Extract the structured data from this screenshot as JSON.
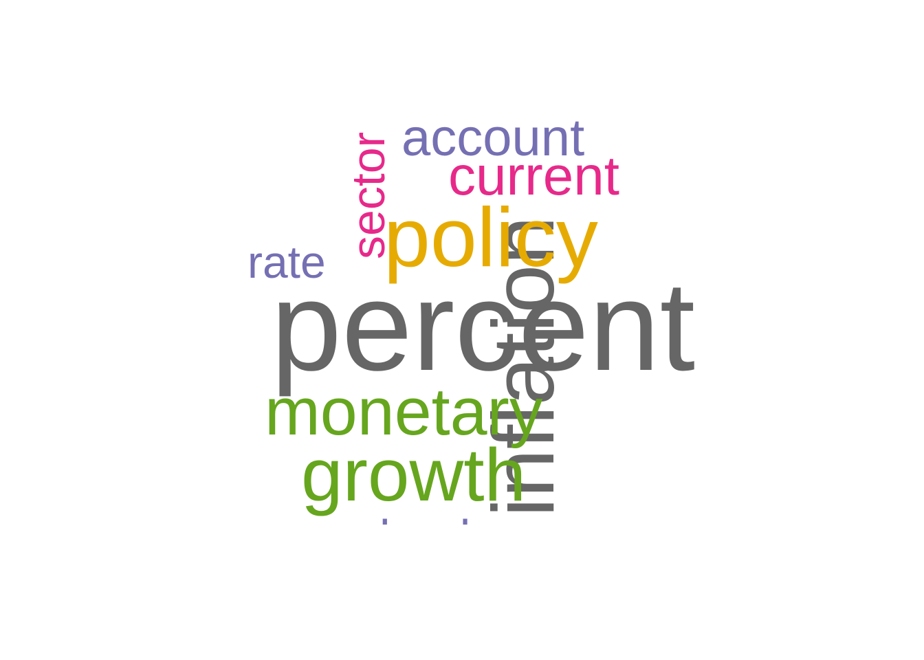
{
  "words": [
    {
      "text": "percent",
      "color": "#666666"
    },
    {
      "text": "inflation",
      "color": "#666666"
    },
    {
      "text": "policy",
      "color": "#E6AB02"
    },
    {
      "text": "monetary",
      "color": "#66A61E"
    },
    {
      "text": "growth",
      "color": "#66A61E"
    },
    {
      "text": "current",
      "color": "#E7298A"
    },
    {
      "text": "sector",
      "color": "#E7298A"
    },
    {
      "text": "account",
      "color": "#7570B3"
    },
    {
      "text": "rate",
      "color": "#7570B3"
    },
    {
      "text": "bank",
      "color": "#7570B3"
    }
  ]
}
